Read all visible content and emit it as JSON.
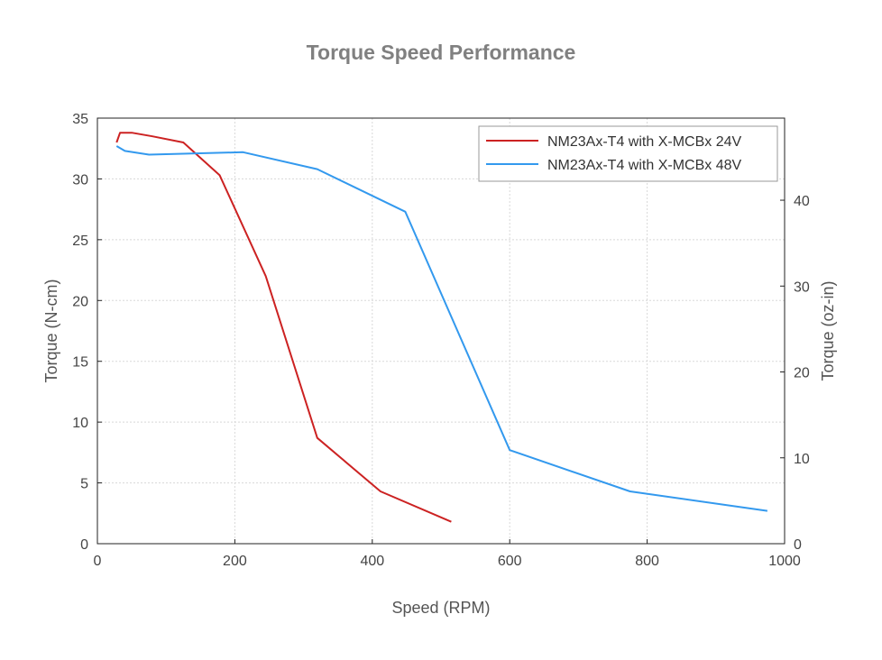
{
  "chart_data": {
    "type": "line",
    "title": "Torque Speed Performance",
    "xlabel": "Speed (RPM)",
    "ylabel": "Torque (N-cm)",
    "y2label": "Torque (oz-in)",
    "xlim": [
      0,
      1000
    ],
    "ylim": [
      0,
      35
    ],
    "y2lim": [
      0,
      49.56
    ],
    "x_ticks": [
      "0",
      "200",
      "400",
      "600",
      "800",
      "1000"
    ],
    "y_ticks": [
      "0",
      "5",
      "10",
      "15",
      "20",
      "25",
      "30",
      "35"
    ],
    "y2_ticks": [
      "0",
      "10",
      "20",
      "30",
      "40"
    ],
    "grid": true,
    "legend_position": "top-right",
    "series": [
      {
        "name": "NM23Ax-T4 with X-MCBx 24V",
        "color": "#cc2222",
        "points": [
          [
            28,
            33.0
          ],
          [
            33,
            33.8
          ],
          [
            50,
            33.8
          ],
          [
            80,
            33.5
          ],
          [
            125,
            33.0
          ],
          [
            178,
            30.3
          ],
          [
            245,
            22.0
          ],
          [
            320,
            8.7
          ],
          [
            412,
            4.3
          ],
          [
            515,
            1.8
          ]
        ]
      },
      {
        "name": "NM23Ax-T4 with X-MCBx 48V",
        "color": "#3399ee",
        "points": [
          [
            28,
            32.7
          ],
          [
            40,
            32.3
          ],
          [
            75,
            32.0
          ],
          [
            212,
            32.2
          ],
          [
            320,
            30.8
          ],
          [
            448,
            27.3
          ],
          [
            600,
            7.7
          ],
          [
            775,
            4.3
          ],
          [
            975,
            2.7
          ]
        ]
      }
    ]
  }
}
